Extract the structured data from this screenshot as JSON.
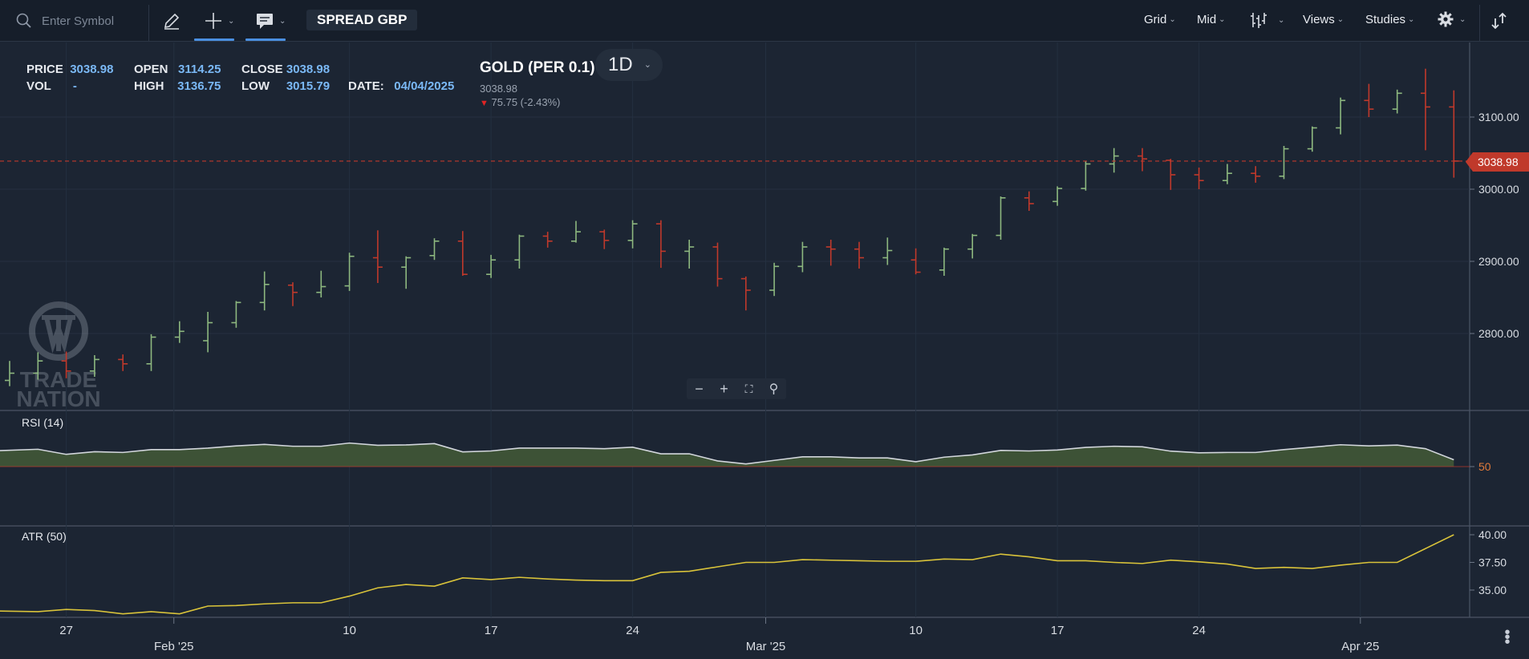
{
  "toolbar": {
    "search_placeholder": "Enter Symbol",
    "spread_label": "SPREAD GBP",
    "grid_label": "Grid",
    "mid_label": "Mid",
    "views_label": "Views",
    "studies_label": "Studies"
  },
  "info": {
    "price_key": "PRICE",
    "price_val": "3038.98",
    "vol_key": "VOL",
    "vol_val": "-",
    "open_key": "OPEN",
    "open_val": "3114.25",
    "high_key": "HIGH",
    "high_val": "3136.75",
    "close_key": "CLOSE",
    "close_val": "3038.98",
    "low_key": "LOW",
    "low_val": "3015.79",
    "date_key": "DATE:",
    "date_val": "04/04/2025"
  },
  "instrument": {
    "title": "GOLD (PER 0.1)",
    "period": "1D",
    "last": "3038.98",
    "change": "75.75 (-2.43%)",
    "last_tag": "3038.98"
  },
  "watermark": {
    "line1": "TRADE",
    "line2": "NATION"
  },
  "panels": {
    "rsi_label": "RSI (14)",
    "atr_label": "ATR (50)"
  },
  "chart_data": [
    {
      "type": "ohlc",
      "title": "GOLD (PER 0.1)",
      "y_ticks": [
        "2800.00",
        "2900.00",
        "3000.00",
        "3100.00"
      ],
      "ylim": [
        2700,
        3180
      ],
      "x_ticks": [
        "27",
        "Feb '25",
        "10",
        "17",
        "24",
        "Mar '25",
        "10",
        "17",
        "24",
        "Apr '25"
      ],
      "last_price": 3038.98,
      "colors": {
        "up": "#8db87f",
        "down": "#c0392b"
      },
      "bars": [
        {
          "o": 2735,
          "h": 2762,
          "l": 2727,
          "c": 2745
        },
        {
          "o": 2745,
          "h": 2774,
          "l": 2736,
          "c": 2762
        },
        {
          "o": 2762,
          "h": 2775,
          "l": 2738,
          "c": 2748
        },
        {
          "o": 2748,
          "h": 2770,
          "l": 2740,
          "c": 2764
        },
        {
          "o": 2764,
          "h": 2771,
          "l": 2748,
          "c": 2758
        },
        {
          "o": 2758,
          "h": 2799,
          "l": 2748,
          "c": 2795
        },
        {
          "o": 2795,
          "h": 2817,
          "l": 2787,
          "c": 2803
        },
        {
          "o": 2790,
          "h": 2830,
          "l": 2774,
          "c": 2815
        },
        {
          "o": 2815,
          "h": 2845,
          "l": 2808,
          "c": 2843
        },
        {
          "o": 2843,
          "h": 2886,
          "l": 2832,
          "c": 2868
        },
        {
          "o": 2867,
          "h": 2871,
          "l": 2838,
          "c": 2857
        },
        {
          "o": 2857,
          "h": 2887,
          "l": 2850,
          "c": 2865
        },
        {
          "o": 2866,
          "h": 2912,
          "l": 2859,
          "c": 2907
        },
        {
          "o": 2905,
          "h": 2943,
          "l": 2870,
          "c": 2892
        },
        {
          "o": 2892,
          "h": 2907,
          "l": 2862,
          "c": 2905
        },
        {
          "o": 2908,
          "h": 2932,
          "l": 2902,
          "c": 2928
        },
        {
          "o": 2928,
          "h": 2942,
          "l": 2880,
          "c": 2882
        },
        {
          "o": 2882,
          "h": 2909,
          "l": 2877,
          "c": 2902
        },
        {
          "o": 2902,
          "h": 2937,
          "l": 2890,
          "c": 2935
        },
        {
          "o": 2935,
          "h": 2941,
          "l": 2919,
          "c": 2928
        },
        {
          "o": 2928,
          "h": 2956,
          "l": 2926,
          "c": 2941
        },
        {
          "o": 2941,
          "h": 2944,
          "l": 2917,
          "c": 2929
        },
        {
          "o": 2929,
          "h": 2957,
          "l": 2918,
          "c": 2952
        },
        {
          "o": 2952,
          "h": 2957,
          "l": 2891,
          "c": 2914
        },
        {
          "o": 2914,
          "h": 2930,
          "l": 2890,
          "c": 2920
        },
        {
          "o": 2920,
          "h": 2926,
          "l": 2865,
          "c": 2876
        },
        {
          "o": 2876,
          "h": 2879,
          "l": 2832,
          "c": 2860
        },
        {
          "o": 2860,
          "h": 2898,
          "l": 2852,
          "c": 2893
        },
        {
          "o": 2893,
          "h": 2927,
          "l": 2885,
          "c": 2920
        },
        {
          "o": 2920,
          "h": 2930,
          "l": 2894,
          "c": 2917
        },
        {
          "o": 2917,
          "h": 2927,
          "l": 2890,
          "c": 2905
        },
        {
          "o": 2905,
          "h": 2933,
          "l": 2895,
          "c": 2915
        },
        {
          "o": 2902,
          "h": 2918,
          "l": 2882,
          "c": 2885
        },
        {
          "o": 2888,
          "h": 2919,
          "l": 2880,
          "c": 2917
        },
        {
          "o": 2917,
          "h": 2938,
          "l": 2904,
          "c": 2936
        },
        {
          "o": 2936,
          "h": 2990,
          "l": 2930,
          "c": 2988
        },
        {
          "o": 2988,
          "h": 2997,
          "l": 2970,
          "c": 2980
        },
        {
          "o": 2983,
          "h": 3004,
          "l": 2977,
          "c": 3001
        },
        {
          "o": 3001,
          "h": 3039,
          "l": 2998,
          "c": 3035
        },
        {
          "o": 3035,
          "h": 3057,
          "l": 3023,
          "c": 3046
        },
        {
          "o": 3046,
          "h": 3057,
          "l": 3025,
          "c": 3042
        },
        {
          "o": 3040,
          "h": 3042,
          "l": 2999,
          "c": 3020
        },
        {
          "o": 3020,
          "h": 3030,
          "l": 3000,
          "c": 3012
        },
        {
          "o": 3012,
          "h": 3035,
          "l": 3007,
          "c": 3022
        },
        {
          "o": 3022,
          "h": 3032,
          "l": 3009,
          "c": 3018
        },
        {
          "o": 3018,
          "h": 3060,
          "l": 3014,
          "c": 3056
        },
        {
          "o": 3056,
          "h": 3087,
          "l": 3052,
          "c": 3085
        },
        {
          "o": 3085,
          "h": 3127,
          "l": 3076,
          "c": 3123
        },
        {
          "o": 3123,
          "h": 3146,
          "l": 3100,
          "c": 3111
        },
        {
          "o": 3111,
          "h": 3138,
          "l": 3105,
          "c": 3133
        },
        {
          "o": 3133,
          "h": 3167,
          "l": 3054,
          "c": 3114
        },
        {
          "o": 3114,
          "h": 3137,
          "l": 3016,
          "c": 3039
        }
      ]
    },
    {
      "type": "line",
      "title": "RSI (14)",
      "y_ticks": [
        "50"
      ],
      "ylim": [
        42,
        72
      ],
      "values": [
        58.5,
        59.2,
        56.5,
        57.9,
        57.5,
        59,
        59,
        59.8,
        61,
        61.8,
        60.8,
        60.8,
        62.5,
        61.3,
        61.5,
        62.2,
        57.8,
        58.3,
        59.8,
        59.8,
        59.8,
        59.5,
        60.3,
        56.8,
        56.8,
        53,
        51.4,
        53.3,
        55.2,
        55.2,
        54.6,
        54.6,
        52.6,
        55,
        56.2,
        58.6,
        58.3,
        58.8,
        60.2,
        60.8,
        60.5,
        58.2,
        57.3,
        57.5,
        57.5,
        59,
        60.3,
        61.6,
        61,
        61.4,
        59.5,
        53.6
      ]
    },
    {
      "type": "line",
      "title": "ATR (50)",
      "y_ticks": [
        "35.00",
        "37.50",
        "40.00"
      ],
      "ylim": [
        32,
        41
      ],
      "values": [
        33.1,
        33.05,
        33.25,
        33.15,
        32.85,
        33.05,
        32.85,
        33.55,
        33.6,
        33.75,
        33.85,
        33.85,
        34.45,
        35.2,
        35.5,
        35.35,
        36.1,
        35.95,
        36.15,
        36.0,
        35.9,
        35.85,
        35.85,
        36.6,
        36.7,
        37.1,
        37.5,
        37.5,
        37.75,
        37.7,
        37.65,
        37.6,
        37.6,
        37.8,
        37.75,
        38.25,
        38.0,
        37.65,
        37.65,
        37.5,
        37.4,
        37.7,
        37.55,
        37.35,
        36.95,
        37.05,
        36.95,
        37.25,
        37.5,
        37.5,
        38.75,
        40.0
      ]
    }
  ]
}
